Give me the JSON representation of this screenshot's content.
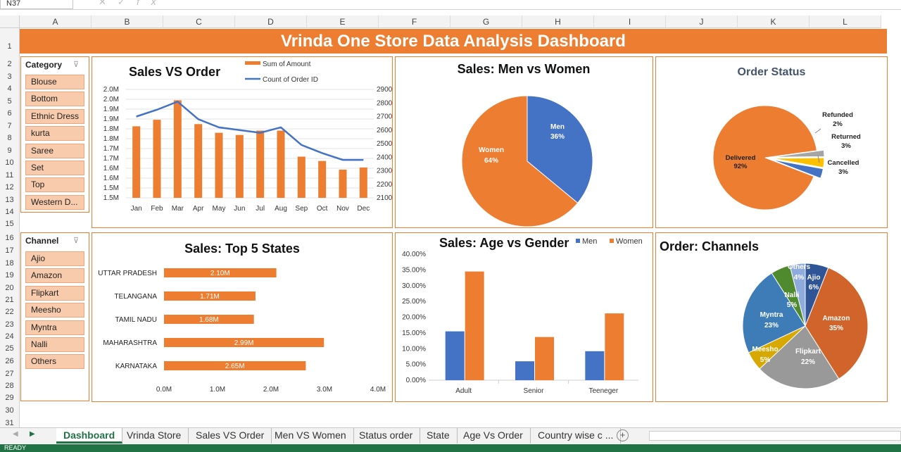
{
  "app": {
    "name_box": "N37",
    "columns": [
      "A",
      "B",
      "C",
      "D",
      "E",
      "F",
      "G",
      "H",
      "I",
      "J",
      "K",
      "L"
    ],
    "rows": [
      "1",
      "2",
      "3",
      "4",
      "5",
      "6",
      "7",
      "8",
      "9",
      "10",
      "11",
      "12",
      "13",
      "14",
      "15",
      "16",
      "17",
      "18",
      "19",
      "20",
      "21",
      "22",
      "23",
      "24",
      "25",
      "26",
      "27",
      "28",
      "29",
      "30",
      "31"
    ],
    "status": "READY"
  },
  "dashboard": {
    "title": "Vrinda One Store Data Analysis Dashboard",
    "category_slicer": {
      "title": "Category",
      "items": [
        "Blouse",
        "Bottom",
        "Ethnic Dress",
        "kurta",
        "Saree",
        "Set",
        "Top",
        "Western D..."
      ]
    },
    "channel_slicer": {
      "title": "Channel",
      "items": [
        "Ajio",
        "Amazon",
        "Flipkart",
        "Meesho",
        "Myntra",
        "Nalli",
        "Others"
      ]
    }
  },
  "tabs": [
    "Dashboard",
    "Vrinda Store",
    "Sales VS Order",
    "Men VS Women",
    "Status order",
    "State",
    "Age Vs Order",
    "Country wise c ..."
  ],
  "colors": {
    "orange": "#ed7d31",
    "blue": "#4472c4",
    "gray": "#a5a5a5",
    "gold": "#ffc000",
    "green": "#70ad47",
    "excel_green": "#217346"
  },
  "chart_data": [
    {
      "type": "bar",
      "title": "Sales VS Order",
      "categories": [
        "Jan",
        "Feb",
        "Mar",
        "Apr",
        "May",
        "Jun",
        "Jul",
        "Aug",
        "Sep",
        "Oct",
        "Nov",
        "Dec"
      ],
      "series": [
        {
          "name": "Sum of Amount",
          "values": [
            1.83,
            1.86,
            1.95,
            1.84,
            1.8,
            1.79,
            1.81,
            1.81,
            1.69,
            1.67,
            1.63,
            1.64
          ]
        },
        {
          "name": "Count of Order ID",
          "values": [
            2700,
            2750,
            2810,
            2680,
            2620,
            2600,
            2580,
            2620,
            2490,
            2430,
            2380,
            2380
          ]
        }
      ],
      "left_ticks": [
        "2.0M",
        "2.0M",
        "1.9M",
        "1.9M",
        "1.8M",
        "1.8M",
        "1.7M",
        "1.7M",
        "1.6M",
        "1.6M",
        "1.5M",
        "1.5M"
      ],
      "right_ticks": [
        "2900",
        "2800",
        "2700",
        "2600",
        "2500",
        "2400",
        "2300",
        "2200",
        "2100"
      ],
      "ylim_left": [
        1.5,
        2.0
      ],
      "ylim_right": [
        2100,
        2900
      ]
    },
    {
      "type": "pie",
      "title": "Sales: Men vs Women",
      "slices": [
        {
          "name": "Men",
          "pct": 36,
          "label": "36%"
        },
        {
          "name": "Women",
          "pct": 64,
          "label": "64%"
        }
      ]
    },
    {
      "type": "pie",
      "title": "Order Status",
      "slices": [
        {
          "name": "Delivered",
          "pct": 92,
          "label": "92%"
        },
        {
          "name": "Refunded",
          "pct": 2,
          "label": "2%"
        },
        {
          "name": "Returned",
          "pct": 3,
          "label": "3%"
        },
        {
          "name": "Cancelled",
          "pct": 3,
          "label": "3%"
        }
      ]
    },
    {
      "type": "bar",
      "title": "Sales: Top 5 States",
      "categories": [
        "UTTAR PRADESH",
        "TELANGANA",
        "TAMIL NADU",
        "MAHARASHTRA",
        "KARNATAKA"
      ],
      "values": [
        2.1,
        1.71,
        1.68,
        2.99,
        2.65
      ],
      "labels": [
        "2.10M",
        "1.71M",
        "1.68M",
        "2.99M",
        "2.65M"
      ],
      "x_ticks": [
        "0.0M",
        "1.0M",
        "2.0M",
        "3.0M",
        "4.0M"
      ],
      "xlim": [
        0,
        4
      ]
    },
    {
      "type": "bar",
      "title": "Sales: Age vs Gender",
      "categories": [
        "Adult",
        "Senior",
        "Teeneger"
      ],
      "series": [
        {
          "name": "Men",
          "values": [
            15.5,
            6.0,
            9.2
          ]
        },
        {
          "name": "Women",
          "values": [
            34.5,
            13.7,
            21.2
          ]
        }
      ],
      "y_ticks": [
        "40.00%",
        "35.00%",
        "30.00%",
        "25.00%",
        "20.00%",
        "15.00%",
        "10.00%",
        "5.00%",
        "0.00%"
      ],
      "ylim": [
        0,
        40
      ]
    },
    {
      "type": "pie",
      "title": "Order: Channels",
      "slices": [
        {
          "name": "Ajio",
          "pct": 6,
          "label": "6%"
        },
        {
          "name": "Amazon",
          "pct": 35,
          "label": "35%"
        },
        {
          "name": "Flipkart",
          "pct": 22,
          "label": "22%"
        },
        {
          "name": "Meesho",
          "pct": 5,
          "label": "5%"
        },
        {
          "name": "Myntra",
          "pct": 23,
          "label": "23%"
        },
        {
          "name": "Nalli",
          "pct": 5,
          "label": "5%"
        },
        {
          "name": "Others",
          "pct": 4,
          "label": "4%"
        }
      ]
    }
  ]
}
